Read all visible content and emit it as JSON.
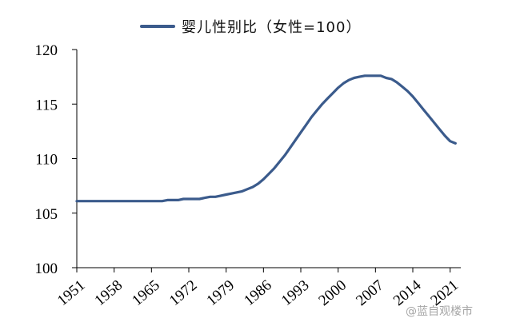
{
  "chart_data": {
    "type": "line",
    "title": "",
    "xlabel": "",
    "ylabel": "",
    "ylim": [
      100,
      120
    ],
    "xlim": [
      1951,
      2023
    ],
    "x_ticks": [
      1951,
      1958,
      1965,
      1972,
      1979,
      1986,
      1993,
      2000,
      2007,
      2014,
      2021
    ],
    "y_ticks": [
      100,
      105,
      110,
      115,
      120
    ],
    "grid": false,
    "legend_position": "top-center",
    "line_color": "#3b5b8c",
    "series": [
      {
        "name": "婴儿性别比（女性=100）",
        "x": [
          1951,
          1952,
          1953,
          1954,
          1955,
          1956,
          1957,
          1958,
          1959,
          1960,
          1961,
          1962,
          1963,
          1964,
          1965,
          1966,
          1967,
          1968,
          1969,
          1970,
          1971,
          1972,
          1973,
          1974,
          1975,
          1976,
          1977,
          1978,
          1979,
          1980,
          1981,
          1982,
          1983,
          1984,
          1985,
          1986,
          1987,
          1988,
          1989,
          1990,
          1991,
          1992,
          1993,
          1994,
          1995,
          1996,
          1997,
          1998,
          1999,
          2000,
          2001,
          2002,
          2003,
          2004,
          2005,
          2006,
          2007,
          2008,
          2009,
          2010,
          2011,
          2012,
          2013,
          2014,
          2015,
          2016,
          2017,
          2018,
          2019,
          2020,
          2021,
          2022
        ],
        "values": [
          106.1,
          106.1,
          106.1,
          106.1,
          106.1,
          106.1,
          106.1,
          106.1,
          106.1,
          106.1,
          106.1,
          106.1,
          106.1,
          106.1,
          106.1,
          106.1,
          106.1,
          106.2,
          106.2,
          106.2,
          106.3,
          106.3,
          106.3,
          106.3,
          106.4,
          106.5,
          106.5,
          106.6,
          106.7,
          106.8,
          106.9,
          107.0,
          107.2,
          107.4,
          107.7,
          108.1,
          108.6,
          109.1,
          109.7,
          110.3,
          111.0,
          111.7,
          112.4,
          113.1,
          113.8,
          114.4,
          115.0,
          115.5,
          116.0,
          116.5,
          116.9,
          117.2,
          117.4,
          117.5,
          117.6,
          117.6,
          117.6,
          117.6,
          117.4,
          117.3,
          117.0,
          116.6,
          116.2,
          115.7,
          115.1,
          114.5,
          113.9,
          113.3,
          112.7,
          112.1,
          111.6,
          111.4
        ]
      }
    ]
  },
  "watermark": "@蓝自观楼市"
}
